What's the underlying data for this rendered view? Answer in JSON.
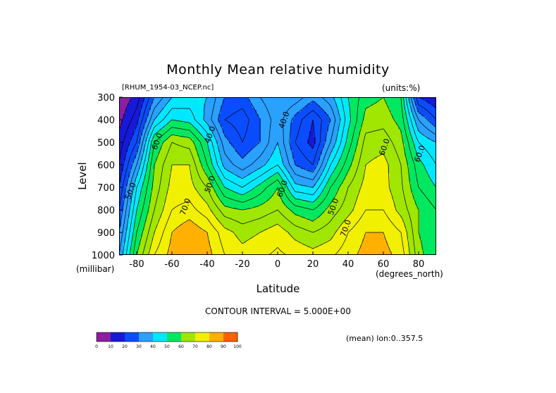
{
  "figure": {
    "title": "Monthly Mean relative humidity",
    "file_label": "[RHUM_1954-03_NCEP.nc]",
    "units_label": "(units:%)",
    "contour_interval": "CONTOUR INTERVAL = 5.000E+00",
    "mean_info": "(mean) lon:0..357.5"
  },
  "chart_data": {
    "type": "heatmap",
    "title": "Monthly Mean relative humidity",
    "xlabel": "Latitude",
    "xunit": "(degrees_north)",
    "ylabel": "Level",
    "yunit": "(millibar)",
    "xlim": [
      -90,
      90
    ],
    "ylim": [
      1000,
      300
    ],
    "x_ticks": [
      -80,
      -60,
      -40,
      -20,
      0,
      20,
      40,
      60,
      80
    ],
    "x_tick_labels": [
      "-80",
      "-60",
      "-40",
      "-20",
      "0",
      "20",
      "40",
      "60",
      "80"
    ],
    "y_ticks": [
      300,
      400,
      500,
      600,
      700,
      800,
      900,
      1000
    ],
    "y_tick_labels": [
      "300",
      "400",
      "500",
      "600",
      "700",
      "800",
      "900",
      "1000"
    ],
    "contour_interval": 5,
    "colorbar": {
      "bounds": [
        0,
        10,
        20,
        30,
        40,
        50,
        60,
        70,
        80,
        90,
        100
      ],
      "labels": [
        "0",
        "10",
        "20",
        "30",
        "40",
        "50",
        "60",
        "70",
        "80",
        "90",
        "100"
      ],
      "colors": [
        "#8c1ea0",
        "#1818d8",
        "#0a4cff",
        "#2aa0ff",
        "#00e8ff",
        "#00e860",
        "#a0e600",
        "#f0f000",
        "#ffb000",
        "#ff6000",
        "#ff0000"
      ]
    },
    "z_levels": [
      300,
      400,
      500,
      600,
      700,
      800,
      900,
      1000
    ],
    "z_lat": [
      -90,
      -80,
      -70,
      -60,
      -50,
      -40,
      -30,
      -20,
      -10,
      0,
      10,
      20,
      30,
      40,
      50,
      60,
      70,
      80,
      90
    ],
    "z_values": [
      [
        5,
        12,
        30,
        40,
        42,
        40,
        30,
        28,
        35,
        40,
        38,
        32,
        38,
        50,
        58,
        60,
        55,
        20,
        15
      ],
      [
        8,
        18,
        40,
        50,
        48,
        38,
        25,
        22,
        30,
        38,
        28,
        20,
        30,
        48,
        62,
        63,
        58,
        35,
        25
      ],
      [
        12,
        25,
        55,
        65,
        63,
        50,
        32,
        25,
        30,
        40,
        25,
        18,
        35,
        52,
        67,
        68,
        62,
        45,
        40
      ],
      [
        15,
        35,
        60,
        70,
        70,
        55,
        38,
        32,
        38,
        45,
        30,
        25,
        45,
        58,
        70,
        72,
        65,
        52,
        45
      ],
      [
        20,
        45,
        62,
        72,
        72,
        65,
        50,
        45,
        52,
        60,
        42,
        40,
        55,
        65,
        72,
        72,
        66,
        55,
        50
      ],
      [
        25,
        50,
        65,
        75,
        77,
        72,
        62,
        60,
        62,
        65,
        58,
        55,
        62,
        68,
        75,
        75,
        68,
        60,
        55
      ],
      [
        30,
        55,
        70,
        80,
        84,
        80,
        72,
        68,
        70,
        73,
        68,
        65,
        68,
        75,
        80,
        80,
        75,
        60,
        55
      ],
      [
        35,
        60,
        75,
        82,
        85,
        82,
        75,
        72,
        74,
        76,
        74,
        72,
        74,
        78,
        82,
        82,
        78,
        62,
        55
      ]
    ],
    "contour_labels": [
      {
        "x": -67,
        "y": 500,
        "text": "60.0"
      },
      {
        "x": -82,
        "y": 720,
        "text": "50.0"
      },
      {
        "x": -51,
        "y": 790,
        "text": "70.0"
      },
      {
        "x": -37,
        "y": 470,
        "text": "40.0"
      },
      {
        "x": -37,
        "y": 690,
        "text": "50.0"
      },
      {
        "x": 5,
        "y": 405,
        "text": "40.0"
      },
      {
        "x": 4,
        "y": 710,
        "text": "60.0"
      },
      {
        "x": 33,
        "y": 790,
        "text": "50.0"
      },
      {
        "x": 40,
        "y": 885,
        "text": "70.0"
      },
      {
        "x": 62,
        "y": 525,
        "text": "60.0"
      },
      {
        "x": 82,
        "y": 555,
        "text": "60.0"
      }
    ]
  }
}
